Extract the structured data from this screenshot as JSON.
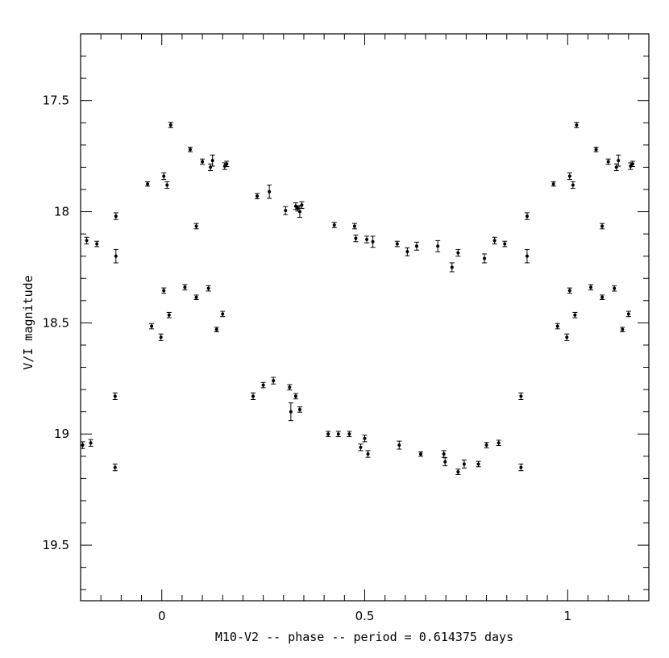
{
  "chart_data": {
    "type": "scatter",
    "title": "",
    "xlabel": "M10-V2 -- phase -- period = 0.614375 days",
    "ylabel": "V/I magnitude",
    "xlim": [
      -0.2,
      1.2
    ],
    "ylim": [
      19.75,
      17.2
    ],
    "y_inverted": true,
    "grid": false,
    "x_ticks": [
      0,
      0.5,
      1
    ],
    "x_tick_labels": [
      "0",
      "0.5",
      "1"
    ],
    "y_ticks": [
      17.5,
      18,
      18.5,
      19,
      19.5
    ],
    "y_tick_labels": [
      "17.5",
      "18",
      "18.5",
      "19",
      "19.5"
    ],
    "series": [
      {
        "marker": "point-with-errorbar",
        "color": "#000000",
        "points": [
          [
            -0.185,
            18.13,
            0.015
          ],
          [
            -0.16,
            18.145,
            0.012
          ],
          [
            -0.113,
            18.02,
            0.015
          ],
          [
            -0.113,
            18.2,
            0.03
          ],
          [
            -0.035,
            17.875,
            0.01
          ],
          [
            0.005,
            17.84,
            0.015
          ],
          [
            0.013,
            17.88,
            0.015
          ],
          [
            0.022,
            17.61,
            0.012
          ],
          [
            0.07,
            17.72,
            0.01
          ],
          [
            0.085,
            18.065,
            0.012
          ],
          [
            0.1,
            17.775,
            0.012
          ],
          [
            0.12,
            17.8,
            0.015
          ],
          [
            0.125,
            17.77,
            0.025
          ],
          [
            0.155,
            17.795,
            0.015
          ],
          [
            0.16,
            17.785,
            0.012
          ],
          [
            0.235,
            17.93,
            0.012
          ],
          [
            0.265,
            17.91,
            0.03
          ],
          [
            0.305,
            17.995,
            0.018
          ],
          [
            0.33,
            17.975,
            0.015
          ],
          [
            0.335,
            17.985,
            0.012
          ],
          [
            0.34,
            18.0,
            0.025
          ],
          [
            0.345,
            17.97,
            0.015
          ],
          [
            0.425,
            18.06,
            0.012
          ],
          [
            0.475,
            18.065,
            0.012
          ],
          [
            0.478,
            18.12,
            0.015
          ],
          [
            0.505,
            18.125,
            0.015
          ],
          [
            0.52,
            18.135,
            0.025
          ],
          [
            0.58,
            18.145,
            0.012
          ],
          [
            0.605,
            18.18,
            0.018
          ],
          [
            0.628,
            18.155,
            0.018
          ],
          [
            0.68,
            18.155,
            0.025
          ],
          [
            0.715,
            18.25,
            0.02
          ],
          [
            0.73,
            18.185,
            0.015
          ],
          [
            0.795,
            18.21,
            0.02
          ],
          [
            0.82,
            18.13,
            0.015
          ],
          [
            0.845,
            18.145,
            0.012
          ],
          [
            0.9,
            18.02,
            0.015
          ],
          [
            0.9,
            18.2,
            0.03
          ],
          [
            0.965,
            17.875,
            0.01
          ],
          [
            1.005,
            17.84,
            0.015
          ],
          [
            1.013,
            17.88,
            0.015
          ],
          [
            1.022,
            17.61,
            0.012
          ],
          [
            1.07,
            17.72,
            0.01
          ],
          [
            1.085,
            18.065,
            0.012
          ],
          [
            1.1,
            17.775,
            0.012
          ],
          [
            1.12,
            17.8,
            0.015
          ],
          [
            1.125,
            17.77,
            0.025
          ],
          [
            1.155,
            17.795,
            0.015
          ],
          [
            1.16,
            17.785,
            0.012
          ],
          [
            -0.195,
            19.05,
            0.015
          ],
          [
            -0.175,
            19.04,
            0.015
          ],
          [
            -0.115,
            18.83,
            0.015
          ],
          [
            -0.115,
            19.15,
            0.015
          ],
          [
            -0.025,
            18.515,
            0.012
          ],
          [
            -0.002,
            18.565,
            0.015
          ],
          [
            0.005,
            18.355,
            0.012
          ],
          [
            0.018,
            18.465,
            0.012
          ],
          [
            0.057,
            18.34,
            0.012
          ],
          [
            0.085,
            18.385,
            0.01
          ],
          [
            0.115,
            18.345,
            0.012
          ],
          [
            0.135,
            18.53,
            0.01
          ],
          [
            0.15,
            18.46,
            0.012
          ],
          [
            0.225,
            18.83,
            0.015
          ],
          [
            0.25,
            18.78,
            0.012
          ],
          [
            0.275,
            18.76,
            0.015
          ],
          [
            0.315,
            18.79,
            0.012
          ],
          [
            0.318,
            18.9,
            0.04
          ],
          [
            0.33,
            18.83,
            0.012
          ],
          [
            0.34,
            18.89,
            0.012
          ],
          [
            0.41,
            19.0,
            0.012
          ],
          [
            0.435,
            19.0,
            0.012
          ],
          [
            0.462,
            19.0,
            0.012
          ],
          [
            0.49,
            19.06,
            0.015
          ],
          [
            0.5,
            19.02,
            0.015
          ],
          [
            0.508,
            19.09,
            0.015
          ],
          [
            0.585,
            19.05,
            0.018
          ],
          [
            0.638,
            19.09,
            0.01
          ],
          [
            0.695,
            19.09,
            0.015
          ],
          [
            0.698,
            19.125,
            0.018
          ],
          [
            0.73,
            19.17,
            0.012
          ],
          [
            0.745,
            19.135,
            0.018
          ],
          [
            0.78,
            19.135,
            0.012
          ],
          [
            0.8,
            19.05,
            0.012
          ],
          [
            0.83,
            19.04,
            0.012
          ],
          [
            0.885,
            18.83,
            0.015
          ],
          [
            0.885,
            19.15,
            0.015
          ],
          [
            0.975,
            18.515,
            0.012
          ],
          [
            0.998,
            18.565,
            0.015
          ],
          [
            1.005,
            18.355,
            0.012
          ],
          [
            1.018,
            18.465,
            0.012
          ],
          [
            1.057,
            18.34,
            0.012
          ],
          [
            1.085,
            18.385,
            0.01
          ],
          [
            1.115,
            18.345,
            0.012
          ],
          [
            1.135,
            18.53,
            0.01
          ],
          [
            1.15,
            18.46,
            0.012
          ]
        ]
      }
    ]
  }
}
